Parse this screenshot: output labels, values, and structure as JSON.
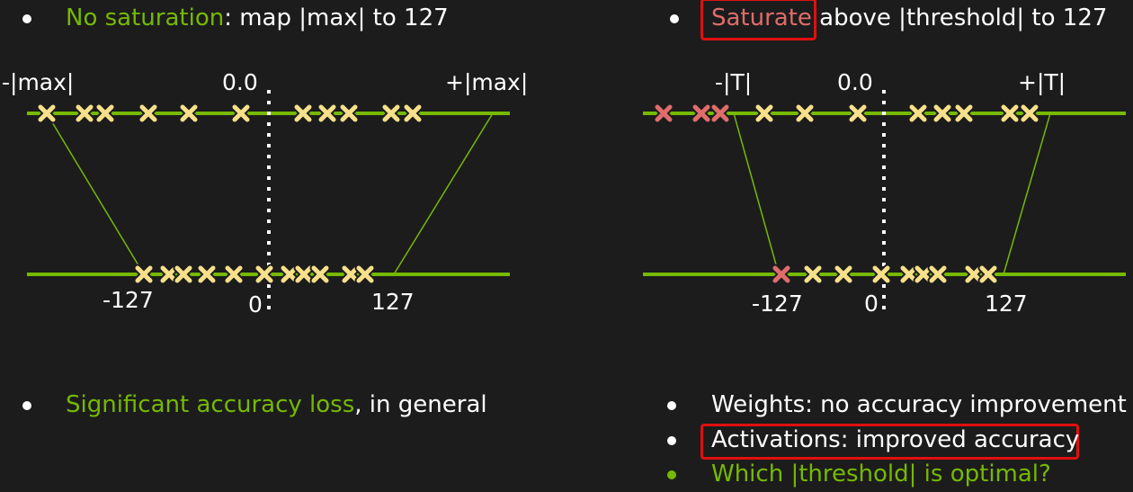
{
  "left": {
    "heading": {
      "green": "No saturation",
      "rest": ": map |max| to 127"
    },
    "top_labels": {
      "neg": "-|max|",
      "zero": "0.0",
      "pos": "+|max|"
    },
    "bottom_labels": {
      "neg": "-127",
      "zero": "0",
      "pos": "127"
    },
    "footer": {
      "green": "Significant accuracy loss",
      "rest": ", in general"
    }
  },
  "right": {
    "heading": {
      "red": "Saturate",
      "rest": " above |threshold| to 127"
    },
    "top_labels": {
      "neg": "-|T|",
      "zero": "0.0",
      "pos": "+|T|"
    },
    "bottom_labels": {
      "neg": "-127",
      "zero": "0",
      "pos": "127"
    },
    "bullets": [
      "Weights: no accuracy improvement",
      "Activations: improved accuracy",
      "Which |threshold| is optimal?"
    ]
  },
  "colors": {
    "accent_green": "#76b900",
    "marker_yellow": "#f7e08a",
    "marker_red": "#e06c6c",
    "highlight_red": "#e01010"
  }
}
